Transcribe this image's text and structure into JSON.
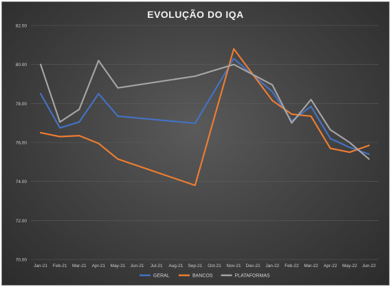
{
  "chart_data": {
    "type": "line",
    "title": "EVOLUÇÃO DO IQA",
    "xlabel": "",
    "ylabel": "",
    "ylim": [
      70,
      82
    ],
    "yticks": [
      "70.00",
      "72.00",
      "74.00",
      "76.00",
      "78.00",
      "80.00",
      "82.00"
    ],
    "categories": [
      "Jan-21",
      "Feb-21",
      "Mar-21",
      "Apr-21",
      "May-21",
      "Jun-21",
      "Jul-21",
      "Aug-21",
      "Sep-21",
      "Oct-21",
      "Nov-21",
      "Dec-21",
      "Jan-22",
      "Feb-22",
      "Mar-22",
      "Apr-22",
      "May-22",
      "Jun-22"
    ],
    "grid": true,
    "legend_position": "bottom",
    "series": [
      {
        "name": "GERAL",
        "color": "#4472c4",
        "values": [
          78.5,
          76.75,
          77.05,
          78.5,
          77.35,
          null,
          null,
          null,
          76.98,
          null,
          80.3,
          null,
          78.6,
          77.1,
          77.85,
          76.2,
          75.75,
          75.4
        ]
      },
      {
        "name": "BANCOS",
        "color": "#ed7d31",
        "values": [
          76.5,
          76.3,
          76.35,
          75.95,
          75.15,
          null,
          null,
          null,
          73.8,
          null,
          80.8,
          null,
          78.15,
          77.45,
          77.35,
          75.7,
          75.5,
          75.85
        ]
      },
      {
        "name": "PLATAFORMAS",
        "color": "#a5a5a5",
        "values": [
          80.0,
          77.05,
          77.7,
          80.2,
          78.8,
          null,
          null,
          null,
          79.4,
          null,
          80.0,
          null,
          78.95,
          77.0,
          78.2,
          76.65,
          76.0,
          75.15
        ]
      }
    ]
  }
}
